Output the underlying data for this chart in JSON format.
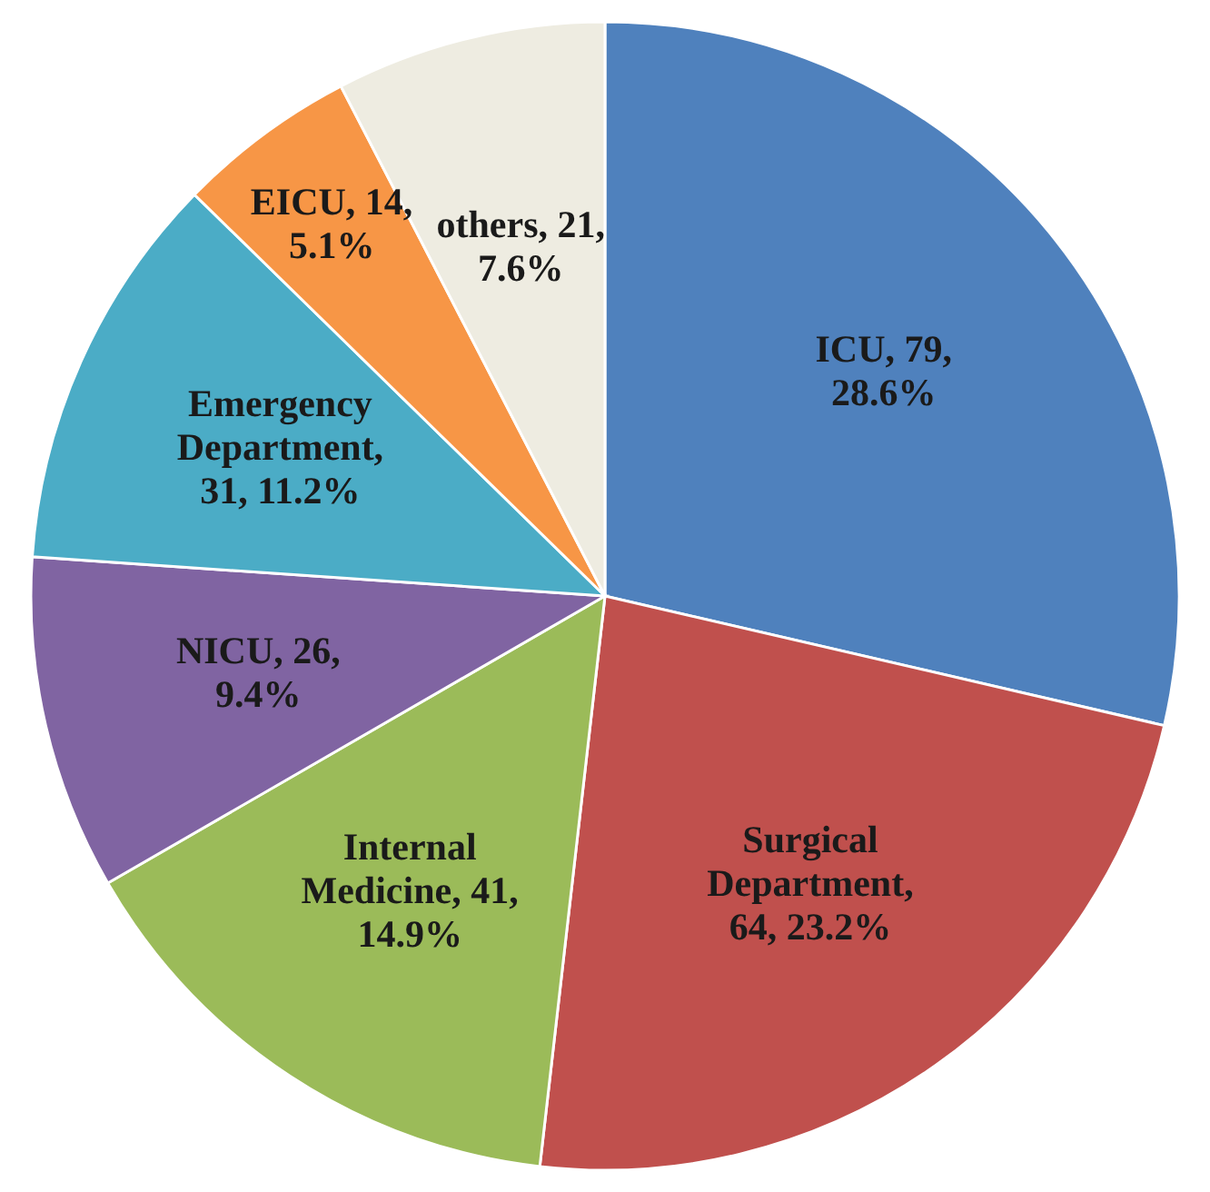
{
  "chart_data": {
    "type": "pie",
    "categories": [
      "ICU",
      "Surgical Department",
      "Internal Medicine",
      "NICU",
      "Emergency Department",
      "EICU",
      "others"
    ],
    "values": [
      79,
      64,
      41,
      26,
      31,
      14,
      21
    ],
    "value_labels": [
      ", 79, 28.6%",
      ", 64, 23.2%",
      ", 41, 14.9%",
      ", 26, 9.4%",
      ", 31, 11.2%",
      ", 14, 5.1%",
      ", 21, 7.6%"
    ],
    "colors": [
      "#4f81bd",
      "#c0504d",
      "#9bbb59",
      "#8064a2",
      "#4bacc6",
      "#f79646",
      "#eeece1"
    ]
  }
}
